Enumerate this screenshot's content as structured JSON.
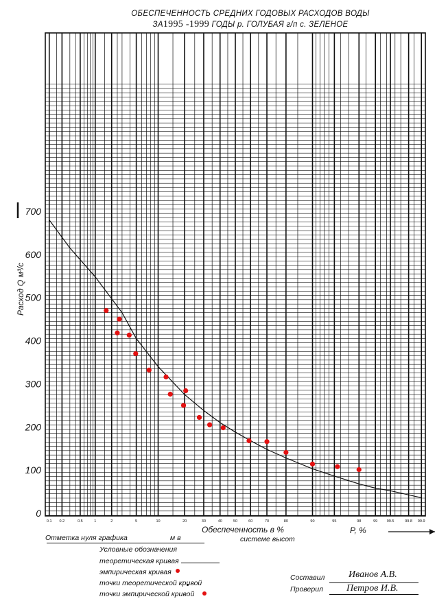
{
  "title": {
    "line1": "ОБЕСПЕЧЕННОСТЬ СРЕДНИХ ГОДОВЫХ РАСХОДОВ ВОДЫ",
    "line2_prefix": "ЗА",
    "years": "1995 -1999",
    "line2_suffix": "ГОДЫ р. ГОЛУБАЯ г/п с. ЗЕЛЕНОЕ"
  },
  "chart_data": {
    "type": "scatter",
    "ylabel": "Расход Q м³/с",
    "xlabel": "Обеспеченность в %",
    "x_axis_caption": "P, %",
    "x_scale": "probability",
    "ylim": [
      0,
      700
    ],
    "y_ticks": [
      0,
      100,
      200,
      300,
      400,
      500,
      600,
      700
    ],
    "y_tick_labels": [
      "0",
      "100",
      "200",
      "300",
      "400",
      "500",
      "600",
      "700"
    ],
    "x_tick_labels": [
      "0.1",
      "0.2",
      "0.5",
      "1",
      "2",
      "5",
      "10",
      "20",
      "30",
      "40",
      "50",
      "60",
      "70",
      "80",
      "90",
      "95",
      "98",
      "99",
      "99.5",
      "99.8",
      "99.9"
    ],
    "grid": true,
    "series": [
      {
        "name": "эмпирическая кривая",
        "kind": "points",
        "color": "#e31111",
        "points": [
          [
            1.6,
            470
          ],
          [
            2.7,
            450
          ],
          [
            2.5,
            418
          ],
          [
            3.9,
            413
          ],
          [
            4.9,
            370
          ],
          [
            7.6,
            332
          ],
          [
            12.5,
            316
          ],
          [
            14,
            276
          ],
          [
            20.5,
            284
          ],
          [
            19.5,
            250
          ],
          [
            27.5,
            222
          ],
          [
            33.5,
            205
          ],
          [
            42,
            198
          ],
          [
            59,
            168
          ],
          [
            70,
            166
          ],
          [
            80,
            141
          ],
          [
            90,
            114
          ],
          [
            95.5,
            108
          ],
          [
            98,
            101
          ]
        ]
      },
      {
        "name": "теоретическая кривая",
        "kind": "line",
        "color": "#111111",
        "points": [
          [
            0.1,
            680
          ],
          [
            0.3,
            615
          ],
          [
            1,
            548
          ],
          [
            3,
            465
          ],
          [
            5,
            405
          ],
          [
            10,
            340
          ],
          [
            20,
            275
          ],
          [
            30,
            238
          ],
          [
            40,
            210
          ],
          [
            50,
            188
          ],
          [
            60,
            168
          ],
          [
            70,
            148
          ],
          [
            80,
            128
          ],
          [
            90,
            103
          ],
          [
            95,
            86
          ],
          [
            98,
            68
          ],
          [
            99,
            58
          ],
          [
            99.5,
            52
          ],
          [
            99.9,
            36
          ]
        ]
      }
    ]
  },
  "footer": {
    "zero_mark": "Отметка нуля графика",
    "zero_unit": "м в",
    "height_system": "системе высот",
    "legend_title": "Условные обозначения",
    "legend_items": [
      "теоретическая кривая",
      "эмпирическая кривая",
      "точки теоретической кривой",
      "точки эмпирической кривой"
    ],
    "compiled_label": "Составил",
    "compiled_name": "Иванов А.В.",
    "checked_label": "Проверил",
    "checked_name": "Петров И.В."
  }
}
